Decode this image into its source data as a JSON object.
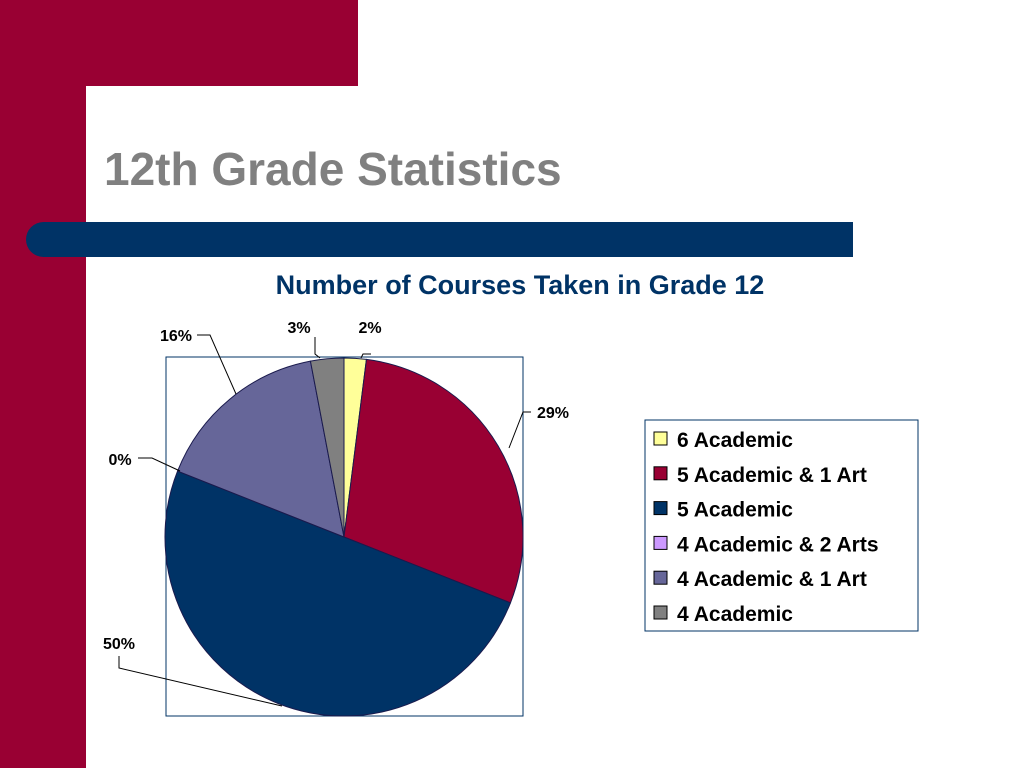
{
  "slide": {
    "title": "12th Grade Statistics",
    "colors": {
      "band": "#990033",
      "title_bar": "#003366",
      "title_text": "#808080"
    }
  },
  "chart_data": {
    "type": "pie",
    "title": "Number of Courses Taken in Grade 12",
    "legend_position": "right",
    "slices": [
      {
        "label": "6 Academic",
        "value": 2,
        "data_label": "2%",
        "color": "#FFFF99"
      },
      {
        "label": "5 Academic & 1 Art",
        "value": 29,
        "data_label": "29%",
        "color": "#990033"
      },
      {
        "label": "5 Academic",
        "value": 50,
        "data_label": "50%",
        "color": "#003366"
      },
      {
        "label": "4 Academic & 2 Arts",
        "value": 0,
        "data_label": "0%",
        "color": "#CC99FF"
      },
      {
        "label": "4 Academic & 1 Art",
        "value": 16,
        "data_label": "16%",
        "color": "#666699"
      },
      {
        "label": "4 Academic",
        "value": 3,
        "data_label": "3%",
        "color": "#808080"
      }
    ]
  }
}
